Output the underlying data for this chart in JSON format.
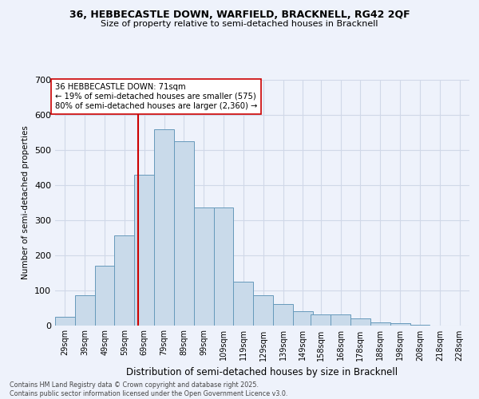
{
  "title_line1": "36, HEBBECASTLE DOWN, WARFIELD, BRACKNELL, RG42 2QF",
  "title_line2": "Size of property relative to semi-detached houses in Bracknell",
  "xlabel": "Distribution of semi-detached houses by size in Bracknell",
  "ylabel": "Number of semi-detached properties",
  "footnote1": "Contains HM Land Registry data © Crown copyright and database right 2025.",
  "footnote2": "Contains public sector information licensed under the Open Government Licence v3.0.",
  "annotation_line1": "36 HEBBECASTLE DOWN: 71sqm",
  "annotation_line2": "← 19% of semi-detached houses are smaller (575)",
  "annotation_line3": "80% of semi-detached houses are larger (2,360) →",
  "property_size": 71,
  "bin_edges": [
    29,
    39,
    49,
    59,
    69,
    79,
    89,
    99,
    109,
    119,
    129,
    139,
    149,
    158,
    168,
    178,
    188,
    198,
    208,
    218,
    228
  ],
  "bin_labels": [
    "29sqm",
    "39sqm",
    "49sqm",
    "59sqm",
    "69sqm",
    "79sqm",
    "89sqm",
    "99sqm",
    "109sqm",
    "119sqm",
    "129sqm",
    "139sqm",
    "149sqm",
    "158sqm",
    "168sqm",
    "178sqm",
    "188sqm",
    "198sqm",
    "208sqm",
    "218sqm",
    "228sqm"
  ],
  "counts": [
    25,
    85,
    170,
    255,
    430,
    560,
    525,
    335,
    335,
    125,
    85,
    60,
    40,
    30,
    30,
    20,
    8,
    5,
    2,
    0
  ],
  "bar_color": "#c9daea",
  "bar_edge_color": "#6699bb",
  "vline_color": "#cc0000",
  "annotation_box_edge": "#cc0000",
  "annotation_box_fill": "#ffffff",
  "background_color": "#eef2fb",
  "grid_color": "#d0d8e8",
  "ylim": [
    0,
    700
  ],
  "yticks": [
    0,
    100,
    200,
    300,
    400,
    500,
    600,
    700
  ]
}
